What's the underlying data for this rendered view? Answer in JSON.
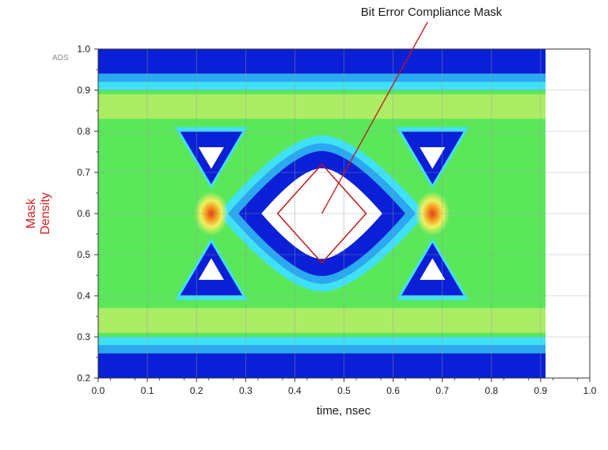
{
  "chart_data": {
    "type": "heatmap",
    "title": "",
    "annotation": "Bit Error Compliance Mask",
    "watermark": "ADS",
    "xlabel": "time, nsec",
    "ylabel_lines": [
      "Mask",
      "Density"
    ],
    "xlim": [
      0.0,
      1.0
    ],
    "ylim": [
      0.2,
      1.0
    ],
    "xticks": [
      "0.0",
      "0.1",
      "0.2",
      "0.3",
      "0.4",
      "0.5",
      "0.6",
      "0.7",
      "0.8",
      "0.9",
      "1.0"
    ],
    "yticks": [
      "0.2",
      "0.3",
      "0.4",
      "0.5",
      "0.6",
      "0.7",
      "0.8",
      "0.9",
      "1.0"
    ],
    "grid": true,
    "data_extent": {
      "x": [
        0.0,
        0.91
      ],
      "y": [
        0.2,
        1.0
      ]
    },
    "eye_crossings_x": [
      0.23,
      0.68
    ],
    "eye_center": {
      "x": 0.455,
      "y": 0.6
    },
    "mask": {
      "shape": "diamond",
      "points": [
        [
          0.455,
          0.72
        ],
        [
          0.545,
          0.6
        ],
        [
          0.455,
          0.48
        ],
        [
          0.365,
          0.6
        ]
      ]
    },
    "colors": {
      "low": "#0a1fd6",
      "mid_low": "#2aa8f0",
      "mid": "#40e0f5",
      "mid_high": "#5ae85a",
      "high": "#f0f070",
      "peak": "#e53a1a",
      "mask": "#c01818"
    }
  }
}
